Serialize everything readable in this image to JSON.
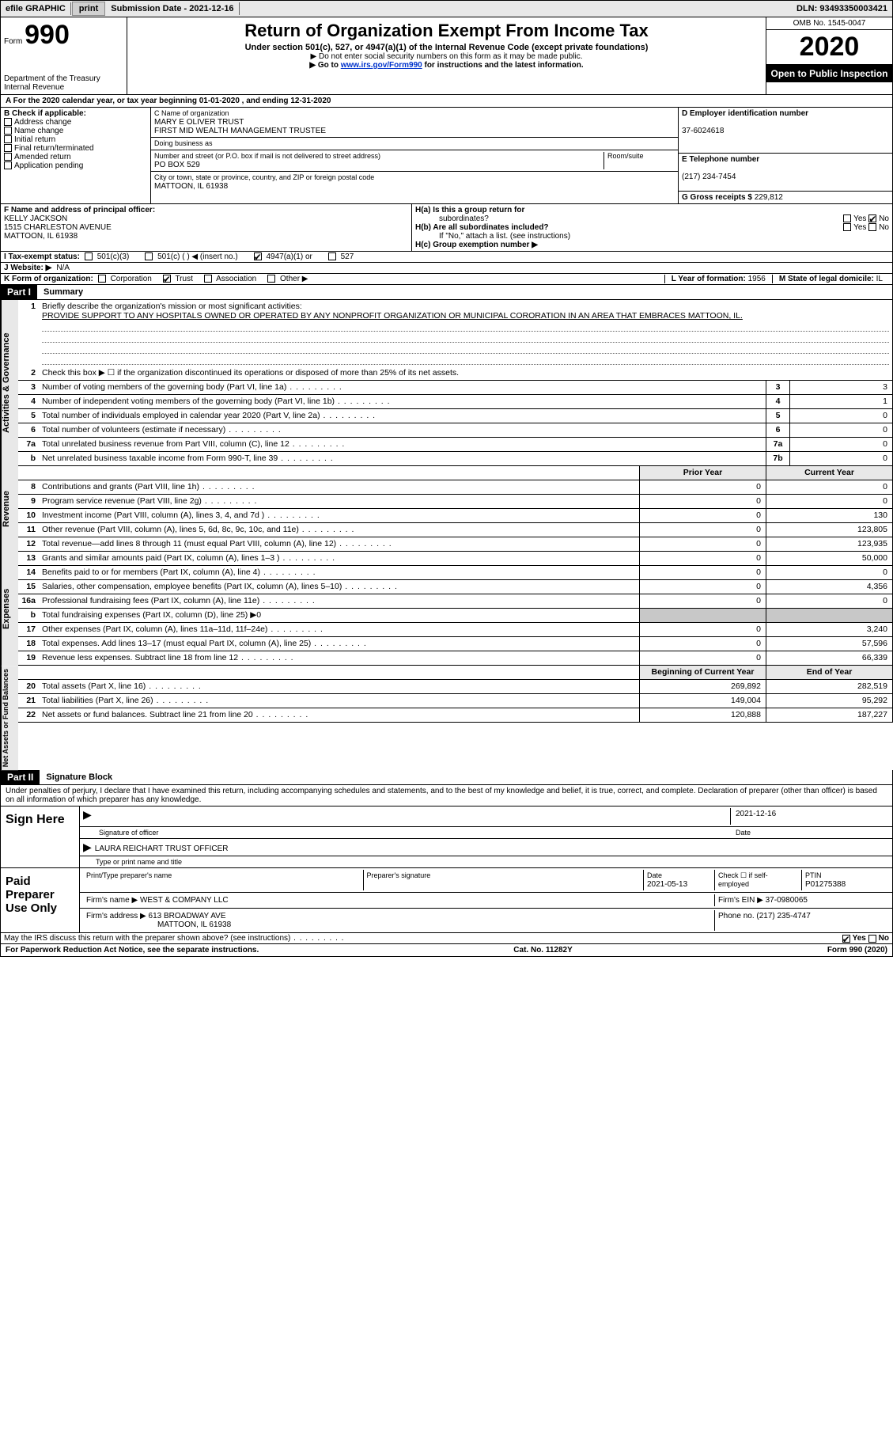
{
  "top": {
    "efile_label": "efile GRAPHIC",
    "print_btn": "print",
    "sub_date_label": "Submission Date - ",
    "sub_date": "2021-12-16",
    "dln_label": "DLN: ",
    "dln": "93493350003421"
  },
  "header": {
    "form_word": "Form",
    "form_num": "990",
    "dept": "Department of the Treasury\nInternal Revenue",
    "title": "Return of Organization Exempt From Income Tax",
    "sub1": "Under section 501(c), 527, or 4947(a)(1) of the Internal Revenue Code (except private foundations)",
    "sub2": "▶ Do not enter social security numbers on this form as it may be made public.",
    "sub3_pre": "▶ Go to ",
    "sub3_link": "www.irs.gov/Form990",
    "sub3_post": " for instructions and the latest information.",
    "omb": "OMB No. 1545-0047",
    "year": "2020",
    "inspect": "Open to Public Inspection"
  },
  "row_a": "A  For the 2020 calendar year, or tax year beginning 01-01-2020    , and ending 12-31-2020",
  "box_b": {
    "label": "B Check if applicable:",
    "items": [
      "Address change",
      "Name change",
      "Initial return",
      "Final return/terminated",
      "Amended return",
      "Application pending"
    ]
  },
  "box_c": {
    "name_lbl": "C Name of organization",
    "name1": "MARY E OLIVER TRUST",
    "name2": "FIRST MID WEALTH MANAGEMENT TRUSTEE",
    "dba_lbl": "Doing business as",
    "addr_lbl": "Number and street (or P.O. box if mail is not delivered to street address)",
    "room_lbl": "Room/suite",
    "addr": "PO BOX 529",
    "city_lbl": "City or town, state or province, country, and ZIP or foreign postal code",
    "city": "MATTOON, IL  61938"
  },
  "box_d": {
    "ein_lbl": "D Employer identification number",
    "ein": "37-6024618",
    "tel_lbl": "E Telephone number",
    "tel": "(217) 234-7454",
    "gross_lbl": "G Gross receipts $ ",
    "gross": "229,812"
  },
  "box_f": {
    "lbl": "F  Name and address of principal officer:",
    "name": "KELLY JACKSON",
    "addr1": "1515 CHARLESTON AVENUE",
    "addr2": "MATTOON, IL  61938"
  },
  "box_h": {
    "a_lbl": "H(a)  Is this a group return for",
    "a_sub": "subordinates?",
    "b_lbl": "H(b)  Are all subordinates included?",
    "b_note": "If \"No,\" attach a list. (see instructions)",
    "c_lbl": "H(c)  Group exemption number ▶",
    "yes": "Yes",
    "no": "No"
  },
  "row_i": {
    "lbl": "I   Tax-exempt status:",
    "opts": [
      "501(c)(3)",
      "501(c) (  ) ◀ (insert no.)",
      "4947(a)(1) or",
      "527"
    ],
    "checked_idx": 2
  },
  "row_j": {
    "lbl": "J   Website: ▶",
    "val": "N/A"
  },
  "row_k": {
    "lbl": "K Form of organization:",
    "opts": [
      "Corporation",
      "Trust",
      "Association",
      "Other ▶"
    ],
    "checked_idx": 1,
    "l_lbl": "L Year of formation: ",
    "l_val": "1956",
    "m_lbl": "M State of legal domicile: ",
    "m_val": "IL"
  },
  "part1": {
    "num": "Part I",
    "title": "Summary"
  },
  "mission": {
    "num": "1",
    "lbl": "Briefly describe the organization's mission or most significant activities:",
    "text": "PROVIDE SUPPORT TO ANY HOSPITALS OWNED OR OPERATED BY ANY NONPROFIT ORGANIZATION OR MUNICIPAL CORORATION IN AN AREA THAT EMBRACES MATTOON, IL."
  },
  "gov_lines": [
    {
      "n": "2",
      "d": "Check this box ▶ ☐  if the organization discontinued its operations or disposed of more than 25% of its net assets."
    },
    {
      "n": "3",
      "d": "Number of voting members of the governing body (Part VI, line 1a)",
      "box": "3",
      "v": "3"
    },
    {
      "n": "4",
      "d": "Number of independent voting members of the governing body (Part VI, line 1b)",
      "box": "4",
      "v": "1"
    },
    {
      "n": "5",
      "d": "Total number of individuals employed in calendar year 2020 (Part V, line 2a)",
      "box": "5",
      "v": "0"
    },
    {
      "n": "6",
      "d": "Total number of volunteers (estimate if necessary)",
      "box": "6",
      "v": "0"
    },
    {
      "n": "7a",
      "d": "Total unrelated business revenue from Part VIII, column (C), line 12",
      "box": "7a",
      "v": "0"
    },
    {
      "n": "b",
      "d": "Net unrelated business taxable income from Form 990-T, line 39",
      "box": "7b",
      "v": "0"
    }
  ],
  "col_hdrs": {
    "prev": "Prior Year",
    "cur": "Current Year"
  },
  "rev_lines": [
    {
      "n": "8",
      "d": "Contributions and grants (Part VIII, line 1h)",
      "p": "0",
      "c": "0"
    },
    {
      "n": "9",
      "d": "Program service revenue (Part VIII, line 2g)",
      "p": "0",
      "c": "0"
    },
    {
      "n": "10",
      "d": "Investment income (Part VIII, column (A), lines 3, 4, and 7d )",
      "p": "0",
      "c": "130"
    },
    {
      "n": "11",
      "d": "Other revenue (Part VIII, column (A), lines 5, 6d, 8c, 9c, 10c, and 11e)",
      "p": "0",
      "c": "123,805"
    },
    {
      "n": "12",
      "d": "Total revenue—add lines 8 through 11 (must equal Part VIII, column (A), line 12)",
      "p": "0",
      "c": "123,935"
    }
  ],
  "exp_lines": [
    {
      "n": "13",
      "d": "Grants and similar amounts paid (Part IX, column (A), lines 1–3 )",
      "p": "0",
      "c": "50,000"
    },
    {
      "n": "14",
      "d": "Benefits paid to or for members (Part IX, column (A), line 4)",
      "p": "0",
      "c": "0"
    },
    {
      "n": "15",
      "d": "Salaries, other compensation, employee benefits (Part IX, column (A), lines 5–10)",
      "p": "0",
      "c": "4,356"
    },
    {
      "n": "16a",
      "d": "Professional fundraising fees (Part IX, column (A), line 11e)",
      "p": "0",
      "c": "0"
    },
    {
      "n": "b",
      "d": "Total fundraising expenses (Part IX, column (D), line 25) ▶0",
      "shade": true
    },
    {
      "n": "17",
      "d": "Other expenses (Part IX, column (A), lines 11a–11d, 11f–24e)",
      "p": "0",
      "c": "3,240"
    },
    {
      "n": "18",
      "d": "Total expenses. Add lines 13–17 (must equal Part IX, column (A), line 25)",
      "p": "0",
      "c": "57,596"
    },
    {
      "n": "19",
      "d": "Revenue less expenses. Subtract line 18 from line 12",
      "p": "0",
      "c": "66,339"
    }
  ],
  "net_hdr": {
    "prev": "Beginning of Current Year",
    "cur": "End of Year"
  },
  "net_lines": [
    {
      "n": "20",
      "d": "Total assets (Part X, line 16)",
      "p": "269,892",
      "c": "282,519"
    },
    {
      "n": "21",
      "d": "Total liabilities (Part X, line 26)",
      "p": "149,004",
      "c": "95,292"
    },
    {
      "n": "22",
      "d": "Net assets or fund balances. Subtract line 21 from line 20",
      "p": "120,888",
      "c": "187,227"
    }
  ],
  "bands": {
    "gov": "Activities & Governance",
    "rev": "Revenue",
    "exp": "Expenses",
    "net": "Net Assets or Fund Balances"
  },
  "part2": {
    "num": "Part II",
    "title": "Signature Block"
  },
  "sig_text": "Under penalties of perjury, I declare that I have examined this return, including accompanying schedules and statements, and to the best of my knowledge and belief, it is true, correct, and complete. Declaration of preparer (other than officer) is based on all information of which preparer has any knowledge.",
  "sign": {
    "lbl": "Sign Here",
    "sig_of": "Signature of officer",
    "date_lbl": "Date",
    "date": "2021-12-16",
    "name": "LAURA REICHART  TRUST OFFICER",
    "name_lbl": "Type or print name and title"
  },
  "prep": {
    "lbl": "Paid Preparer Use Only",
    "p_name_lbl": "Print/Type preparer's name",
    "p_sig_lbl": "Preparer's signature",
    "p_date_lbl": "Date",
    "p_date": "2021-05-13",
    "check_lbl": "Check ☐  if self-employed",
    "ptin_lbl": "PTIN",
    "ptin": "P01275388",
    "firm_name_lbl": "Firm's name  ▶",
    "firm_name": "WEST & COMPANY LLC",
    "firm_ein_lbl": "Firm's EIN ▶",
    "firm_ein": "37-0980065",
    "firm_addr_lbl": "Firm's address ▶",
    "firm_addr1": "613 BROADWAY AVE",
    "firm_addr2": "MATTOON, IL  61938",
    "phone_lbl": "Phone no. ",
    "phone": "(217) 235-4747"
  },
  "discuss": {
    "q": "May the IRS discuss this return with the preparer shown above? (see instructions)",
    "yes": "Yes",
    "no": "No"
  },
  "foot": {
    "l": "For Paperwork Reduction Act Notice, see the separate instructions.",
    "m": "Cat. No. 11282Y",
    "r": "Form 990 (2020)"
  },
  "colors": {
    "link": "#0033cc",
    "shade": "#c8c8c8",
    "band": "#e8e8e8"
  }
}
